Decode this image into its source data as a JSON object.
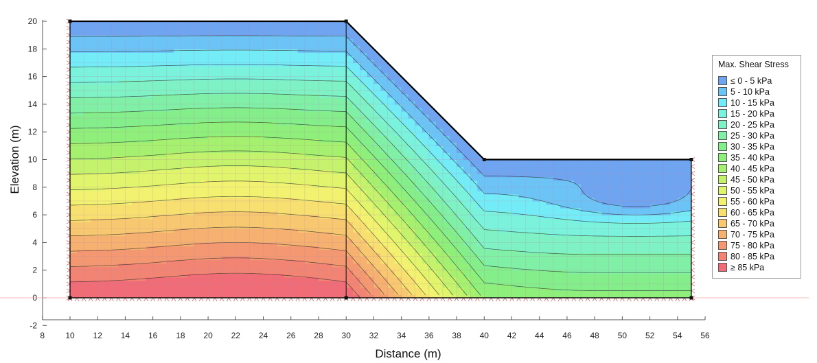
{
  "chart_data": {
    "type": "heatmap",
    "title": "",
    "xlabel": "Distance (m)",
    "ylabel": "Elevation (m)",
    "xlim": [
      8,
      56
    ],
    "ylim": [
      -2,
      20
    ],
    "xticks": [
      8,
      10,
      12,
      14,
      16,
      18,
      20,
      22,
      24,
      26,
      28,
      30,
      32,
      34,
      36,
      38,
      40,
      42,
      44,
      46,
      48,
      50,
      52,
      54,
      56
    ],
    "yticks": [
      -2,
      0,
      2,
      4,
      6,
      8,
      10,
      12,
      14,
      16,
      18,
      20
    ],
    "geometry_points": [
      [
        10,
        0
      ],
      [
        10,
        20
      ],
      [
        30,
        20
      ],
      [
        40,
        10
      ],
      [
        55,
        10
      ],
      [
        55,
        0
      ]
    ],
    "region_divider": [
      [
        30,
        0
      ],
      [
        30,
        20
      ]
    ],
    "legend": {
      "title": "Max. Shear Stress",
      "placement": "right",
      "items": [
        {
          "label": "≤ 0 - 5 kPa",
          "color": "#6fa4f0"
        },
        {
          "label": "5 - 10 kPa",
          "color": "#6cc4f6"
        },
        {
          "label": "10 - 15 kPa",
          "color": "#74ecf8"
        },
        {
          "label": "15 - 20 kPa",
          "color": "#7bf3dc"
        },
        {
          "label": "20 - 25 kPa",
          "color": "#7ef2c4"
        },
        {
          "label": "25 - 30 kPa",
          "color": "#80f0a6"
        },
        {
          "label": "30 - 35 kPa",
          "color": "#84ee8a"
        },
        {
          "label": "35 - 40 kPa",
          "color": "#8eef7a"
        },
        {
          "label": "40 - 45 kPa",
          "color": "#a6f070"
        },
        {
          "label": "45 - 50 kPa",
          "color": "#c4f26c"
        },
        {
          "label": "50 - 55 kPa",
          "color": "#e0f46c"
        },
        {
          "label": "55 - 60 kPa",
          "color": "#f2f270"
        },
        {
          "label": "60 - 65 kPa",
          "color": "#f8e070"
        },
        {
          "label": "65 - 70 kPa",
          "color": "#f8c870"
        },
        {
          "label": "70 - 75 kPa",
          "color": "#f6b070"
        },
        {
          "label": "75 - 80 kPa",
          "color": "#f49872"
        },
        {
          "label": "80 - 85 kPa",
          "color": "#f28474"
        },
        {
          "label": "≥ 85 kPa",
          "color": "#f06c76"
        }
      ]
    }
  }
}
